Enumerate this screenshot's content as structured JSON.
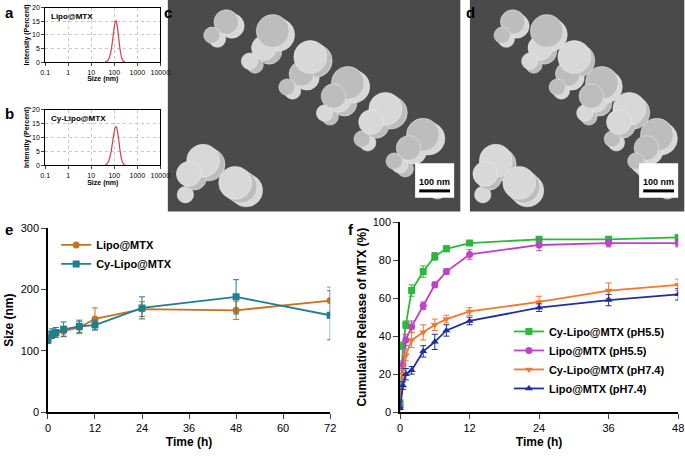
{
  "chart_data": [
    {
      "panel": "a",
      "type": "line",
      "title": "Lipo@MTX",
      "x": [
        40,
        50,
        60,
        70,
        80,
        90,
        100,
        110,
        120,
        130,
        140,
        160,
        180,
        210,
        250,
        300
      ],
      "values": [
        0,
        0.4,
        1.5,
        3.5,
        6.5,
        9.8,
        12.8,
        14.8,
        15.2,
        14.2,
        12.3,
        8,
        4.5,
        1.6,
        0.3,
        0
      ],
      "color": "#d04050",
      "x_label": "Size (nm)",
      "y_label": "Intensity (Percent)",
      "log": "x",
      "xlim": [
        0.1,
        10000
      ],
      "xticks": [
        0.1,
        1,
        10,
        100,
        1000,
        10000
      ],
      "ylim": [
        0,
        20
      ],
      "yticks": [
        0,
        5,
        10,
        15,
        20
      ],
      "grid": true
    },
    {
      "panel": "b",
      "type": "line",
      "title": "Cy-Lipo@MTX",
      "x": [
        40,
        50,
        60,
        70,
        80,
        90,
        100,
        110,
        120,
        130,
        140,
        160,
        180,
        210,
        250,
        300
      ],
      "values": [
        0,
        0.6,
        2,
        4.2,
        7,
        9.8,
        12.2,
        13.6,
        14,
        13.3,
        12,
        8.5,
        5.2,
        2,
        0.5,
        0
      ],
      "color": "#d04050",
      "x_label": "Size (nm)",
      "y_label": "Intensity (Percent)",
      "log": "x",
      "xlim": [
        0.1,
        10000
      ],
      "xticks": [
        0.1,
        1,
        10,
        100,
        1000,
        10000
      ],
      "ylim": [
        0,
        20
      ],
      "yticks": [
        0,
        5,
        10,
        15,
        20
      ],
      "grid": true
    },
    {
      "panel": "c",
      "type": "image",
      "scale_bar": "100 nm"
    },
    {
      "panel": "d",
      "type": "image",
      "scale_bar": "100 nm"
    },
    {
      "panel": "e",
      "type": "line",
      "x": [
        0,
        1,
        2,
        4,
        8,
        12,
        24,
        48,
        72
      ],
      "x_label": "Time (h)",
      "y_label": "Size (nm)",
      "xlim": [
        0,
        72
      ],
      "xticks": [
        0,
        12,
        24,
        36,
        48,
        60,
        72
      ],
      "ylim": [
        0,
        300
      ],
      "yticks": [
        0,
        100,
        200,
        300
      ],
      "legend": "upper left",
      "grid": false,
      "series": [
        {
          "name": "Lipo@MTX",
          "color": "#c8711f",
          "marker": "circle",
          "values": [
            120,
            125,
            128,
            132,
            138,
            152,
            168,
            166,
            182
          ],
          "errors": [
            5,
            5,
            6,
            8,
            10,
            18,
            12,
            15,
            22
          ]
        },
        {
          "name": "Cy-Lipo@MTX",
          "color": "#1f7f8f",
          "marker": "square",
          "values": [
            118,
            128,
            130,
            135,
            140,
            142,
            170,
            188,
            158
          ],
          "errors": [
            6,
            8,
            8,
            12,
            10,
            8,
            18,
            28,
            40
          ]
        }
      ]
    },
    {
      "panel": "f",
      "type": "line",
      "x": [
        0,
        0.5,
        1,
        2,
        4,
        6,
        8,
        12,
        24,
        36,
        48
      ],
      "x_label": "Time (h)",
      "y_label": "Cumulative Release of MTX (%)",
      "xlim": [
        0,
        48
      ],
      "xticks": [
        0,
        12,
        24,
        36,
        48
      ],
      "ylim": [
        0,
        100
      ],
      "yticks": [
        0,
        20,
        40,
        60,
        80,
        100
      ],
      "legend": "lower right",
      "grid": false,
      "series": [
        {
          "name": "Cy-Lipo@MTX (pH5.5)",
          "color": "#2db83d",
          "marker": "square",
          "values": [
            5,
            35,
            46,
            64,
            74,
            82,
            86,
            89,
            91,
            91,
            92
          ],
          "errors": [
            0.5,
            2,
            2,
            3,
            3,
            2,
            1.5,
            1,
            1,
            1,
            1
          ]
        },
        {
          "name": "Lipo@MTX (pH5.5)",
          "color": "#c040c8",
          "marker": "circle",
          "values": [
            3,
            25,
            38,
            45,
            56,
            67,
            74,
            83,
            88,
            89,
            89
          ],
          "errors": [
            0.5,
            2,
            3,
            3,
            2,
            1.5,
            1.5,
            2.5,
            3,
            2,
            2
          ]
        },
        {
          "name": "Cy-Lipo@MTX (pH7.4)",
          "color": "#f07830",
          "marker": "triangle-down",
          "values": [
            2,
            20,
            30,
            38,
            42,
            46,
            49,
            53,
            58,
            64,
            67
          ],
          "errors": [
            0.5,
            2,
            3,
            4,
            4,
            3,
            2,
            2,
            3,
            4,
            3
          ]
        },
        {
          "name": "Lipo@MTX (pH7.4)",
          "color": "#1f2f9c",
          "marker": "triangle-up",
          "values": [
            2,
            14,
            20,
            22,
            32,
            37,
            43,
            48,
            55,
            59,
            62
          ],
          "errors": [
            0.5,
            2,
            3,
            2,
            3,
            4,
            3,
            2,
            2,
            3,
            3
          ]
        }
      ]
    }
  ]
}
